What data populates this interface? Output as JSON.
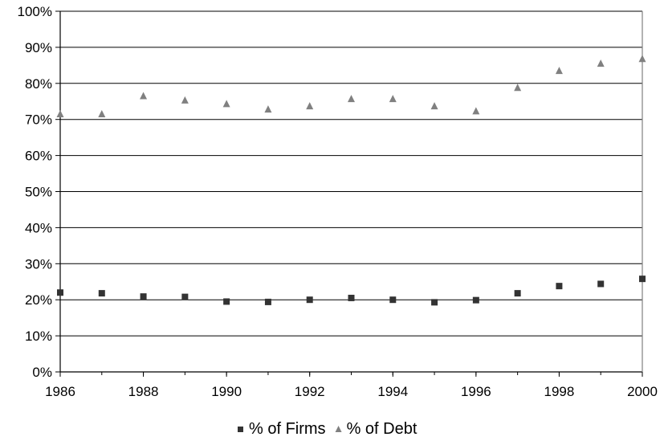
{
  "chart_data": {
    "type": "scatter",
    "title": "",
    "xlabel": "",
    "ylabel": "",
    "x": [
      1986,
      1987,
      1988,
      1989,
      1990,
      1991,
      1992,
      1993,
      1994,
      1995,
      1996,
      1997,
      1998,
      1999,
      2000
    ],
    "xlim": [
      1986,
      2000
    ],
    "ylim": [
      0,
      100
    ],
    "x_ticks": [
      "1986",
      "1988",
      "1990",
      "1992",
      "1994",
      "1996",
      "1998",
      "2000"
    ],
    "y_ticks": [
      "0%",
      "10%",
      "20%",
      "30%",
      "40%",
      "50%",
      "60%",
      "70%",
      "80%",
      "90%",
      "100%"
    ],
    "grid": true,
    "legend_position": "bottom",
    "series": [
      {
        "name": "% of Firms",
        "marker": "square",
        "color": "#333333",
        "values": [
          22,
          21.8,
          20.9,
          20.8,
          19.5,
          19.4,
          20,
          20.5,
          20,
          19.3,
          19.9,
          21.8,
          23.8,
          24.4,
          25.8
        ]
      },
      {
        "name": "% of Debt",
        "marker": "triangle",
        "color": "#808080",
        "values": [
          71.5,
          71.5,
          76.5,
          75.3,
          74.3,
          72.8,
          73.7,
          75.7,
          75.7,
          73.7,
          72.3,
          78.8,
          83.5,
          85.5,
          86.8
        ]
      }
    ]
  }
}
